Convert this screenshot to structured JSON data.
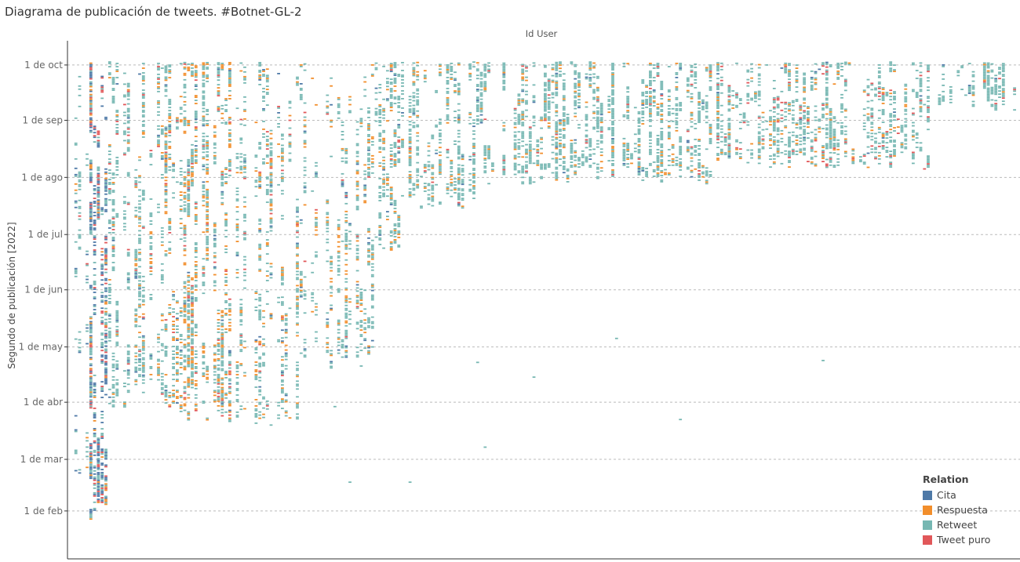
{
  "chart_data": {
    "type": "scatter",
    "title": "Diagrama de publicación de tweets. #Botnet-GL-2",
    "xlabel": "Id User",
    "ylabel": "Segundo de publicación [2022]",
    "y_unit": "day_of_year_2022",
    "ylim": [
      6,
      288
    ],
    "grid": true,
    "y_ticks": [
      {
        "label": "1 de oct",
        "day": 274
      },
      {
        "label": "1 de sep",
        "day": 244
      },
      {
        "label": "1 de ago",
        "day": 213
      },
      {
        "label": "1 de jul",
        "day": 182
      },
      {
        "label": "1 de jun",
        "day": 152
      },
      {
        "label": "1 de may",
        "day": 121
      },
      {
        "label": "1 de abr",
        "day": 91
      },
      {
        "label": "1 de mar",
        "day": 60
      },
      {
        "label": "1 de feb",
        "day": 32
      }
    ],
    "legend": {
      "title": "Relation",
      "position": "bottom-right",
      "items": [
        {
          "label": "Cita",
          "color": "#4e79a7"
        },
        {
          "label": "Respuesta",
          "color": "#f28e2b"
        },
        {
          "label": "Retweet",
          "color": "#76b7b2"
        },
        {
          "label": "Tweet puro",
          "color": "#e15759"
        }
      ]
    },
    "user_count": 252,
    "user_groups": [
      {
        "users": [
          0,
          1
        ],
        "start": 22,
        "end": 276,
        "mix": [
          0.3,
          0.05,
          0.55,
          0.1
        ],
        "density": 0.4
      },
      {
        "users": [
          2,
          4
        ],
        "start": 50,
        "end": 276,
        "mix": [
          0.1,
          0.05,
          0.8,
          0.05
        ],
        "density": 0.35
      },
      {
        "users": [
          5,
          9
        ],
        "start": 28,
        "end": 276,
        "mix": [
          0.45,
          0.1,
          0.3,
          0.15
        ],
        "density": 0.7
      },
      {
        "users": [
          10,
          15
        ],
        "start": 85,
        "end": 276,
        "mix": [
          0.05,
          0.05,
          0.85,
          0.05
        ],
        "density": 0.45
      },
      {
        "users": [
          16,
          24
        ],
        "start": 95,
        "end": 276,
        "mix": [
          0.03,
          0.15,
          0.8,
          0.02
        ],
        "density": 0.45
      },
      {
        "users": [
          25,
          42
        ],
        "start": 80,
        "end": 276,
        "mix": [
          0.03,
          0.3,
          0.62,
          0.05
        ],
        "density": 0.55
      },
      {
        "users": [
          43,
          60
        ],
        "start": 78,
        "end": 276,
        "mix": [
          0.05,
          0.2,
          0.72,
          0.03
        ],
        "density": 0.4
      },
      {
        "users": [
          61,
          80
        ],
        "start": 110,
        "end": 276,
        "mix": [
          0.05,
          0.2,
          0.73,
          0.02
        ],
        "density": 0.45
      },
      {
        "users": [
          81,
          87
        ],
        "start": 172,
        "end": 276,
        "mix": [
          0.03,
          0.15,
          0.8,
          0.02
        ],
        "density": 0.5
      },
      {
        "users": [
          88,
          108
        ],
        "start": 195,
        "end": 276,
        "mix": [
          0.03,
          0.12,
          0.83,
          0.02
        ],
        "density": 0.55
      },
      {
        "users": [
          109,
          115
        ],
        "start": 208,
        "end": 276,
        "mix": [
          0.02,
          0.08,
          0.88,
          0.02
        ],
        "density": 0.6
      },
      {
        "users": [
          116,
          170
        ],
        "start": 210,
        "end": 276,
        "mix": [
          0.02,
          0.12,
          0.84,
          0.02
        ],
        "density": 0.6
      },
      {
        "users": [
          171,
          230
        ],
        "start": 218,
        "end": 276,
        "mix": [
          0.02,
          0.12,
          0.8,
          0.06
        ],
        "density": 0.5
      },
      {
        "users": [
          231,
          251
        ],
        "start": 250,
        "end": 276,
        "mix": [
          0.02,
          0.05,
          0.9,
          0.03
        ],
        "density": 0.55
      }
    ],
    "outliers": [
      {
        "user": 145,
        "day": 126,
        "relation": "Retweet"
      },
      {
        "user": 108,
        "day": 113,
        "relation": "Retweet"
      },
      {
        "user": 200,
        "day": 114,
        "relation": "Retweet"
      },
      {
        "user": 123,
        "day": 105,
        "relation": "Retweet"
      },
      {
        "user": 162,
        "day": 82,
        "relation": "Retweet"
      },
      {
        "user": 110,
        "day": 67,
        "relation": "Retweet"
      },
      {
        "user": 90,
        "day": 48,
        "relation": "Retweet"
      },
      {
        "user": 74,
        "day": 48,
        "relation": "Retweet"
      },
      {
        "user": 70,
        "day": 89,
        "relation": "Retweet"
      }
    ]
  }
}
